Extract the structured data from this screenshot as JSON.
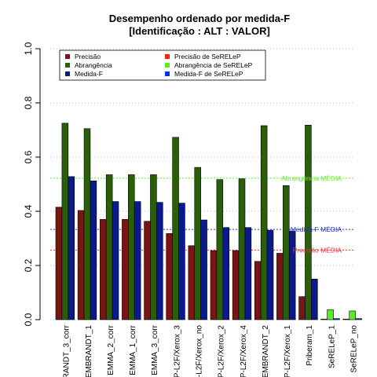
{
  "chart_data": {
    "type": "bar",
    "title": "Desempenho ordenado por medida-F",
    "subtitle": "[Identificação : ALT : VALOR]",
    "ylim": [
      0,
      1
    ],
    "yticks": [
      "0.0",
      "0.2",
      "0.4",
      "0.6",
      "0.8",
      "1.0"
    ],
    "grid": "dotted horizontal",
    "legend_placement": "top",
    "categories": [
      "RANDT_3_corr",
      "EMBRANDT_1",
      "EMMA_2_corr",
      "EMMA_1_corr",
      "EMMA_3_corr",
      "P-L2F/Xerox_3",
      "-L2F/Xerox_no",
      "P-L2F/Xerox_2",
      "P-L2F/Xerox_4",
      "EMBRANDT_2",
      "P-L2F/Xerox_1",
      "Priberam_1",
      "SeRELeP_1",
      "SeRELeP_no"
    ],
    "series": [
      {
        "name": "Precisão",
        "color": "#7a1515",
        "values": [
          0.415,
          0.403,
          0.37,
          0.37,
          0.363,
          0.318,
          0.273,
          0.255,
          0.255,
          0.215,
          0.245,
          0.085,
          null,
          null
        ]
      },
      {
        "name": "Abrangência",
        "color": "#2a5e0a",
        "values": [
          0.725,
          0.705,
          0.535,
          0.535,
          0.535,
          0.673,
          0.562,
          0.517,
          0.52,
          0.716,
          0.495,
          0.718,
          null,
          null
        ]
      },
      {
        "name": "Medida-F",
        "color": "#0a1a8a",
        "values": [
          0.528,
          0.512,
          0.436,
          0.436,
          0.433,
          0.43,
          0.368,
          0.34,
          0.34,
          0.33,
          0.327,
          0.15,
          null,
          null
        ]
      },
      {
        "name": "Precisão  de  SeRELeP",
        "color": "#ff2200",
        "values": [
          null,
          null,
          null,
          null,
          null,
          null,
          null,
          null,
          null,
          null,
          null,
          null,
          0.002,
          0.002
        ]
      },
      {
        "name": "Abrangência  de  SeRELeP",
        "color": "#55ee22",
        "values": [
          null,
          null,
          null,
          null,
          null,
          null,
          null,
          null,
          null,
          null,
          null,
          null,
          0.037,
          0.032
        ]
      },
      {
        "name": "Medida-F  de  SeRELeP",
        "color": "#0033ff",
        "values": [
          null,
          null,
          null,
          null,
          null,
          null,
          null,
          null,
          null,
          null,
          null,
          null,
          0.004,
          0.004
        ]
      }
    ],
    "reference_lines": [
      {
        "label": "Abrangência MÉDIA",
        "value": 0.522,
        "color": "#66ee33"
      },
      {
        "label": "Medida-F MÉDIA",
        "value": 0.333,
        "color": "#2233cc"
      },
      {
        "label": "Precisão MÉDIA",
        "value": 0.257,
        "color": "#ee3333"
      }
    ]
  }
}
